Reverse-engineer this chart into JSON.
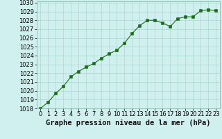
{
  "x": [
    0,
    1,
    2,
    3,
    4,
    5,
    6,
    7,
    8,
    9,
    10,
    11,
    12,
    13,
    14,
    15,
    16,
    17,
    18,
    19,
    20,
    21,
    22,
    23
  ],
  "y": [
    1018.0,
    1018.7,
    1019.7,
    1020.5,
    1021.6,
    1022.2,
    1022.7,
    1023.1,
    1023.7,
    1024.2,
    1024.6,
    1025.4,
    1026.5,
    1027.4,
    1028.0,
    1028.0,
    1027.7,
    1027.3,
    1028.2,
    1028.4,
    1028.4,
    1029.1,
    1029.2,
    1029.1
  ],
  "line_color": "#1a6b1a",
  "marker_color": "#1a6b1a",
  "bg_color": "#cff0ee",
  "grid_color": "#aad8cc",
  "xlabel": "Graphe pression niveau de la mer (hPa)",
  "ylim": [
    1018,
    1030
  ],
  "xlim": [
    -0.5,
    23.5
  ],
  "yticks": [
    1018,
    1019,
    1020,
    1021,
    1022,
    1023,
    1024,
    1025,
    1026,
    1027,
    1028,
    1029,
    1030
  ],
  "xticks": [
    0,
    1,
    2,
    3,
    4,
    5,
    6,
    7,
    8,
    9,
    10,
    11,
    12,
    13,
    14,
    15,
    16,
    17,
    18,
    19,
    20,
    21,
    22,
    23
  ],
  "xlabel_fontsize": 7.5,
  "tick_fontsize": 6,
  "marker_size": 2.5,
  "linewidth": 0.8
}
